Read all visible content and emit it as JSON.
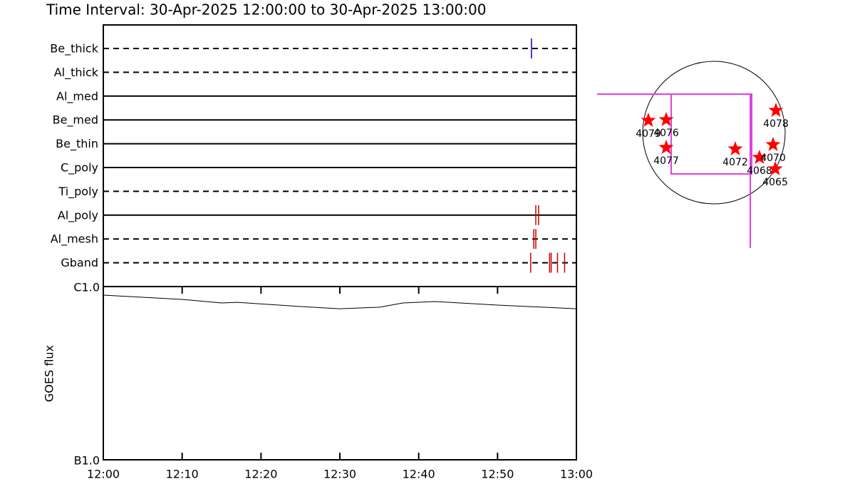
{
  "chart_data": [
    {
      "type": "timeline",
      "title": "Time Interval: 30-Apr-2025 12:00:00 to 30-Apr-2025 13:00:00",
      "xlim": [
        0,
        60
      ],
      "rows": [
        {
          "name": "Be_thick",
          "style": "dashed",
          "color": "#0000cc",
          "events": [
            54.3
          ]
        },
        {
          "name": "Al_thick",
          "style": "dashed",
          "color": "#cc0000",
          "events": []
        },
        {
          "name": "Al_med",
          "style": "solid",
          "color": "#cc0000",
          "events": []
        },
        {
          "name": "Be_med",
          "style": "solid",
          "color": "#cc0000",
          "events": []
        },
        {
          "name": "Be_thin",
          "style": "solid",
          "color": "#cc0000",
          "events": []
        },
        {
          "name": "C_poly",
          "style": "solid",
          "color": "#cc0000",
          "events": []
        },
        {
          "name": "Ti_poly",
          "style": "dashed",
          "color": "#cc0000",
          "events": []
        },
        {
          "name": "Al_poly",
          "style": "solid",
          "color": "#cc0000",
          "events": [
            54.85,
            55.2
          ]
        },
        {
          "name": "Al_mesh",
          "style": "dashed",
          "color": "#cc0000",
          "events": [
            54.6,
            54.85
          ]
        },
        {
          "name": "Gband",
          "style": "dashed",
          "color": "#cc0000",
          "events": [
            54.2,
            56.6,
            56.8,
            57.6,
            58.5
          ]
        }
      ]
    },
    {
      "type": "line",
      "ylabel": "GOES flux",
      "log_scale": true,
      "color": "#000000",
      "x": [
        0,
        10,
        15,
        17,
        25,
        30,
        35,
        38,
        42,
        50,
        60
      ],
      "values": [
        8.93e-07,
        8.43e-07,
        8.04e-07,
        8.11e-07,
        7.67e-07,
        7.45e-07,
        7.6e-07,
        8.04e-07,
        8.2e-07,
        7.82e-07,
        7.45e-07
      ],
      "xlim": [
        0,
        60
      ],
      "xticks": [
        {
          "value": 0,
          "label": "12:00"
        },
        {
          "value": 10,
          "label": "12:10"
        },
        {
          "value": 20,
          "label": "12:20"
        },
        {
          "value": 30,
          "label": "12:30"
        },
        {
          "value": 40,
          "label": "12:40"
        },
        {
          "value": 50,
          "label": "12:50"
        },
        {
          "value": 60,
          "label": "13:00"
        }
      ],
      "ylim": [
        1e-07,
        1e-06
      ],
      "yticks": [
        {
          "value": 1e-07,
          "label": "B1.0"
        },
        {
          "value": 1e-06,
          "label": "C1.0"
        }
      ]
    },
    {
      "type": "scatter",
      "color": "#ff0000",
      "labels": [
        "4079",
        "4076",
        "4078",
        "4077",
        "4072",
        "4068",
        "4070",
        "4065"
      ],
      "x": [
        -883,
        -643,
        835,
        -643,
        288,
        614,
        797,
        826
      ],
      "y": [
        163,
        173,
        298,
        -202,
        -221,
        -336,
        -163,
        -490
      ]
    }
  ]
}
